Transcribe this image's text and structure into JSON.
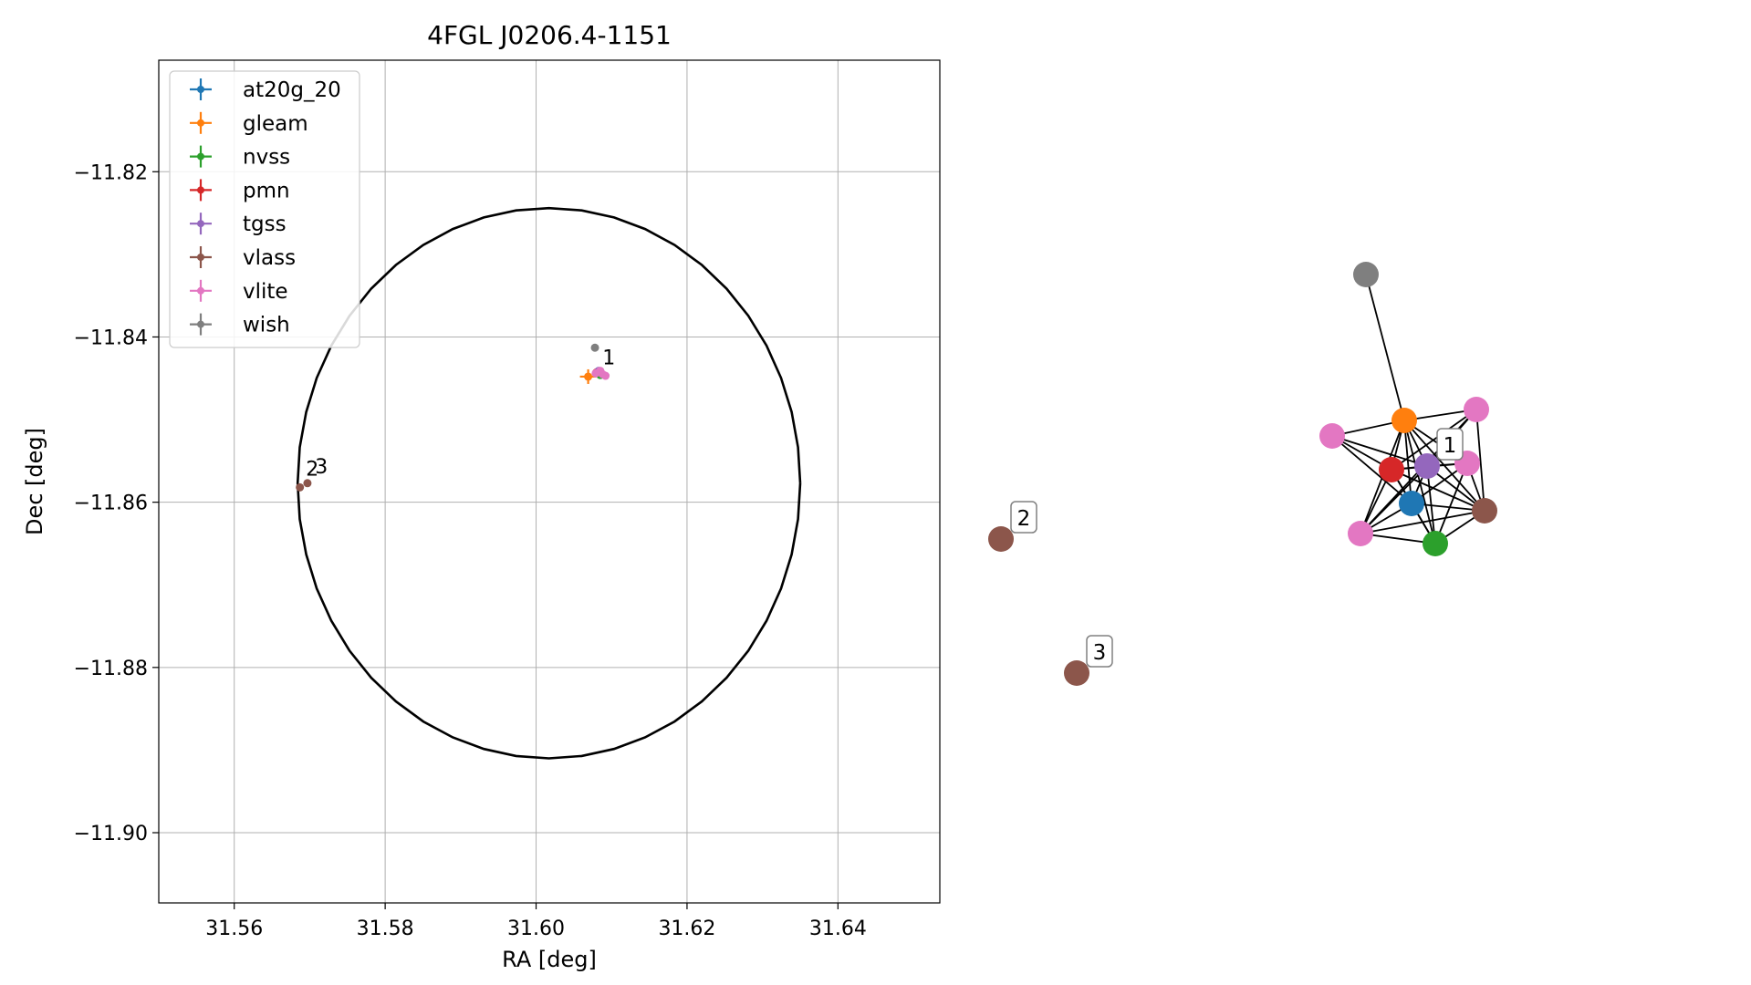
{
  "chart_data": [
    {
      "type": "scatter",
      "title": "4FGL J0206.4-1151",
      "xlabel": "RA [deg]",
      "ylabel": "Dec [deg]",
      "xlim": [
        31.55,
        31.6535
      ],
      "ylim": [
        -11.9085,
        -11.8065
      ],
      "xticks": [
        31.56,
        31.58,
        31.6,
        31.62,
        31.64
      ],
      "xtick_labels": [
        "31.56",
        "31.58",
        "31.60",
        "31.62",
        "31.64"
      ],
      "yticks": [
        -11.82,
        -11.84,
        -11.86,
        -11.88,
        -11.9
      ],
      "ytick_labels": [
        "−11.82",
        "−11.84",
        "−11.86",
        "−11.88",
        "−11.90"
      ],
      "grid": true,
      "legend_position": "top-left",
      "ellipse": {
        "center": [
          31.6017,
          -11.8577
        ],
        "semi_axis_x": 0.0333,
        "semi_axis_y": 0.0333,
        "color": "#000000"
      },
      "series": [
        {
          "name": "at20g_20",
          "color": "#1f77b4",
          "points": [
            [
              31.6082,
              -11.8442
            ]
          ]
        },
        {
          "name": "gleam",
          "color": "#ff7f0e",
          "points": [
            [
              31.6069,
              -11.8448
            ]
          ]
        },
        {
          "name": "nvss",
          "color": "#2ca02c",
          "points": [
            [
              31.6085,
              -11.8446
            ]
          ]
        },
        {
          "name": "pmn",
          "color": "#d62728",
          "points": [
            [
              31.608,
              -11.8443
            ]
          ]
        },
        {
          "name": "tgss",
          "color": "#9467bd",
          "points": [
            [
              31.6083,
              -11.8441
            ]
          ]
        },
        {
          "name": "vlass",
          "color": "#8c564b",
          "points": [
            [
              31.5687,
              -11.8582
            ],
            [
              31.5697,
              -11.8577
            ]
          ]
        },
        {
          "name": "vlite",
          "color": "#e377c2",
          "points": [
            [
              31.6085,
              -11.8441
            ],
            [
              31.6092,
              -11.8447
            ],
            [
              31.6088,
              -11.8445
            ],
            [
              31.6079,
              -11.8444
            ]
          ]
        },
        {
          "name": "wish",
          "color": "#7f7f7f",
          "points": [
            [
              31.6078,
              -11.8413
            ]
          ]
        }
      ],
      "annotations": [
        {
          "text": "1",
          "x": 31.6088,
          "y": -11.8433
        },
        {
          "text": "2",
          "x": 31.5695,
          "y": -11.8568
        },
        {
          "text": "3",
          "x": 31.5707,
          "y": -11.8565
        }
      ]
    },
    {
      "type": "network",
      "nodes": [
        {
          "id": "n_wish",
          "color": "#7f7f7f"
        },
        {
          "id": "n_gleam",
          "color": "#ff7f0e"
        },
        {
          "id": "n_vlite1",
          "color": "#e377c2"
        },
        {
          "id": "n_vlite2",
          "color": "#e377c2"
        },
        {
          "id": "n_tgss",
          "color": "#9467bd"
        },
        {
          "id": "n_vlite3",
          "color": "#e377c2"
        },
        {
          "id": "n_pmn",
          "color": "#d62728"
        },
        {
          "id": "n_at20g",
          "color": "#1f77b4"
        },
        {
          "id": "n_vlass1",
          "color": "#8c564b"
        },
        {
          "id": "n_vlite4",
          "color": "#e377c2"
        },
        {
          "id": "n_nvss",
          "color": "#2ca02c"
        },
        {
          "id": "n_vlass2",
          "color": "#8c564b"
        },
        {
          "id": "n_vlass3",
          "color": "#8c564b"
        }
      ],
      "edges": [
        [
          "n_wish",
          "n_gleam"
        ],
        [
          "n_gleam",
          "n_vlite1"
        ],
        [
          "n_gleam",
          "n_vlite2"
        ],
        [
          "n_gleam",
          "n_tgss"
        ],
        [
          "n_gleam",
          "n_pmn"
        ],
        [
          "n_gleam",
          "n_at20g"
        ],
        [
          "n_gleam",
          "n_nvss"
        ],
        [
          "n_gleam",
          "n_vlass1"
        ],
        [
          "n_gleam",
          "n_vlite4"
        ],
        [
          "n_gleam",
          "n_vlite3"
        ],
        [
          "n_vlite1",
          "n_pmn"
        ],
        [
          "n_vlite1",
          "n_tgss"
        ],
        [
          "n_vlite1",
          "n_at20g"
        ],
        [
          "n_vlite2",
          "n_tgss"
        ],
        [
          "n_vlite2",
          "n_pmn"
        ],
        [
          "n_vlite2",
          "n_vlite4"
        ],
        [
          "n_vlite2",
          "n_vlass1"
        ],
        [
          "n_tgss",
          "n_pmn"
        ],
        [
          "n_tgss",
          "n_at20g"
        ],
        [
          "n_tgss",
          "n_vlite3"
        ],
        [
          "n_tgss",
          "n_nvss"
        ],
        [
          "n_tgss",
          "n_vlite4"
        ],
        [
          "n_tgss",
          "n_vlass1"
        ],
        [
          "n_vlite3",
          "n_pmn"
        ],
        [
          "n_vlite3",
          "n_vlass1"
        ],
        [
          "n_vlite3",
          "n_at20g"
        ],
        [
          "n_vlite3",
          "n_nvss"
        ],
        [
          "n_pmn",
          "n_at20g"
        ],
        [
          "n_pmn",
          "n_nvss"
        ],
        [
          "n_pmn",
          "n_vlite4"
        ],
        [
          "n_pmn",
          "n_vlass1"
        ],
        [
          "n_at20g",
          "n_vlite4"
        ],
        [
          "n_at20g",
          "n_nvss"
        ],
        [
          "n_at20g",
          "n_vlass1"
        ],
        [
          "n_vlite4",
          "n_nvss"
        ],
        [
          "n_vlite4",
          "n_vlass1"
        ],
        [
          "n_nvss",
          "n_vlass1"
        ]
      ],
      "labels": [
        {
          "text": "1",
          "node": "n_tgss"
        },
        {
          "text": "2",
          "node": "n_vlass2"
        },
        {
          "text": "3",
          "node": "n_vlass3"
        }
      ]
    }
  ]
}
